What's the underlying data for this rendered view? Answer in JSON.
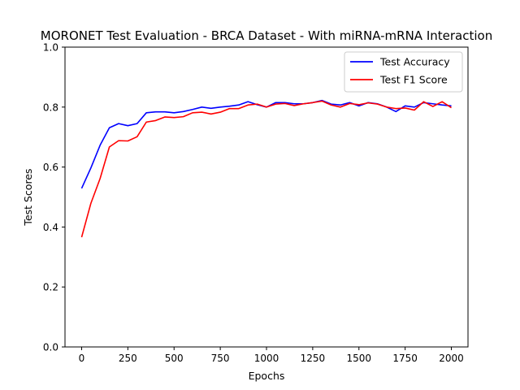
{
  "chart_data": {
    "type": "line",
    "title": "MORONET Test Evaluation - BRCA Dataset - With miRNA-mRNA Interaction",
    "xlabel": "Epochs",
    "ylabel": "Test Scores",
    "xlim": [
      -90,
      2090
    ],
    "ylim": [
      0.0,
      1.0
    ],
    "xticks": [
      0,
      250,
      500,
      750,
      1000,
      1250,
      1500,
      1750,
      2000
    ],
    "xtick_labels": [
      "0",
      "250",
      "500",
      "750",
      "1000",
      "1250",
      "1500",
      "1750",
      "2000"
    ],
    "yticks": [
      0.0,
      0.2,
      0.4,
      0.6,
      0.8,
      1.0
    ],
    "ytick_labels": [
      "0.0",
      "0.2",
      "0.4",
      "0.6",
      "0.8",
      "1.0"
    ],
    "grid": false,
    "legend_position": "top-right",
    "x": [
      0,
      50,
      100,
      150,
      200,
      250,
      300,
      350,
      400,
      450,
      500,
      550,
      600,
      650,
      700,
      750,
      800,
      850,
      900,
      950,
      1000,
      1050,
      1100,
      1150,
      1200,
      1250,
      1300,
      1350,
      1400,
      1450,
      1500,
      1550,
      1600,
      1650,
      1700,
      1750,
      1800,
      1850,
      1900,
      1950,
      2000
    ],
    "series": [
      {
        "name": "Test Accuracy",
        "color": "#0000ff",
        "values": [
          0.529,
          0.597,
          0.673,
          0.731,
          0.745,
          0.738,
          0.745,
          0.781,
          0.784,
          0.784,
          0.781,
          0.785,
          0.792,
          0.8,
          0.796,
          0.8,
          0.803,
          0.807,
          0.818,
          0.808,
          0.8,
          0.815,
          0.815,
          0.811,
          0.811,
          0.815,
          0.822,
          0.81,
          0.807,
          0.815,
          0.804,
          0.815,
          0.811,
          0.8,
          0.785,
          0.804,
          0.8,
          0.815,
          0.811,
          0.807,
          0.804
        ]
      },
      {
        "name": "Test F1 Score",
        "color": "#ff0000",
        "values": [
          0.366,
          0.479,
          0.562,
          0.667,
          0.688,
          0.687,
          0.701,
          0.75,
          0.755,
          0.767,
          0.765,
          0.768,
          0.781,
          0.783,
          0.777,
          0.783,
          0.795,
          0.795,
          0.807,
          0.81,
          0.8,
          0.81,
          0.812,
          0.805,
          0.811,
          0.815,
          0.82,
          0.807,
          0.8,
          0.812,
          0.808,
          0.814,
          0.81,
          0.8,
          0.795,
          0.797,
          0.79,
          0.818,
          0.802,
          0.818,
          0.798
        ]
      }
    ]
  }
}
